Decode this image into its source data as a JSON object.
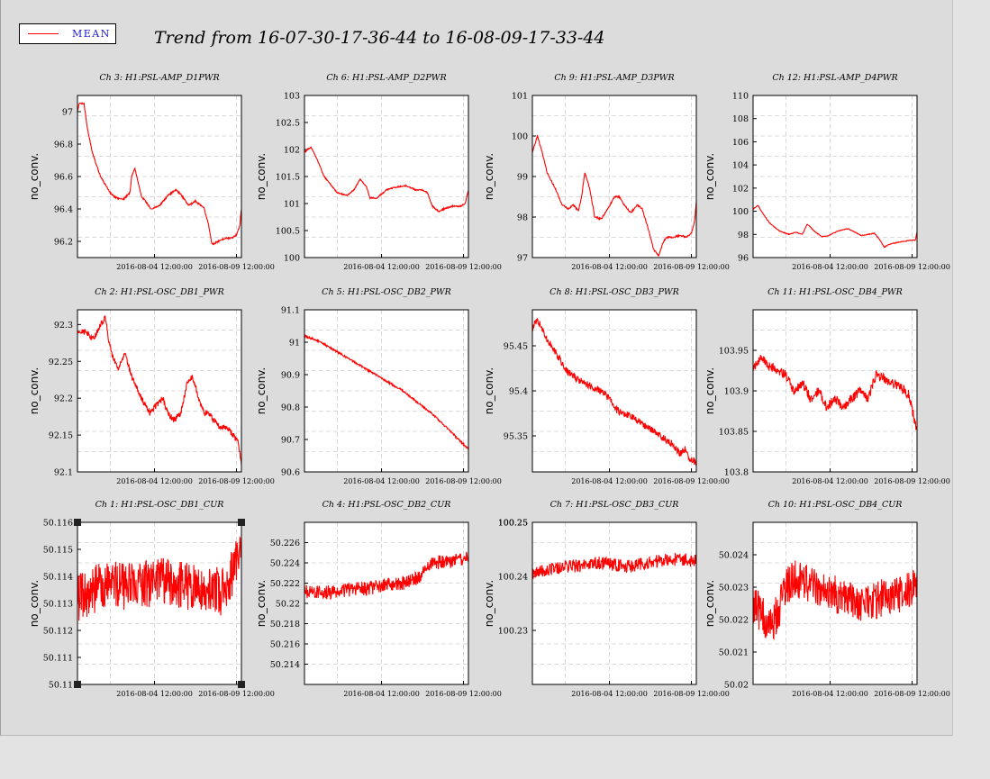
{
  "legend": {
    "label": "MEAN",
    "color": "#ff0000"
  },
  "title": "Trend from 16-07-30-17-36-44 to 16-08-09-17-33-44",
  "chart_data": [
    {
      "type": "line",
      "title": "Ch 3: H1:PSL-AMP_D1PWR",
      "ylabel": "no_conv.",
      "ylim": [
        96.1,
        97.1
      ],
      "yticks": [
        "96.2",
        "96.4",
        "96.6",
        "96.8",
        "97"
      ],
      "xticks": [
        "2016-08-04 12:00:00",
        "2016-08-09 12:00:00"
      ],
      "grid": true,
      "noise": 0.005,
      "series": [
        {
          "name": "MEAN",
          "x": [
            0,
            0.01,
            0.04,
            0.06,
            0.09,
            0.14,
            0.2,
            0.23,
            0.28,
            0.32,
            0.33,
            0.35,
            0.39,
            0.45,
            0.5,
            0.55,
            0.6,
            0.63,
            0.68,
            0.72,
            0.74,
            0.77,
            0.8,
            0.82,
            0.86,
            0.9,
            0.94,
            0.97,
            0.99,
            1
          ],
          "values": [
            97.0,
            97.05,
            97.05,
            96.9,
            96.75,
            96.6,
            96.5,
            96.47,
            96.46,
            96.5,
            96.6,
            96.65,
            96.48,
            96.4,
            96.42,
            96.48,
            96.52,
            96.49,
            96.42,
            96.45,
            96.43,
            96.41,
            96.3,
            96.18,
            96.2,
            96.22,
            96.22,
            96.24,
            96.3,
            96.4
          ]
        }
      ]
    },
    {
      "type": "line",
      "title": "Ch 6: H1:PSL-AMP_D2PWR",
      "ylabel": "no_conv.",
      "ylim": [
        100,
        103
      ],
      "yticks": [
        "100",
        "100.5",
        "101",
        "101.5",
        "102",
        "102.5",
        "103"
      ],
      "xticks": [
        "2016-08-04 12:00:00",
        "2016-08-09 12:00:00"
      ],
      "grid": true,
      "noise": 0.012,
      "series": [
        {
          "name": "MEAN",
          "x": [
            0,
            0.04,
            0.08,
            0.12,
            0.2,
            0.26,
            0.3,
            0.34,
            0.38,
            0.4,
            0.44,
            0.5,
            0.55,
            0.62,
            0.68,
            0.72,
            0.75,
            0.78,
            0.82,
            0.85,
            0.9,
            0.95,
            0.98,
            1
          ],
          "values": [
            101.95,
            102.05,
            101.8,
            101.5,
            101.2,
            101.15,
            101.25,
            101.45,
            101.3,
            101.1,
            101.1,
            101.25,
            101.3,
            101.33,
            101.25,
            101.25,
            101.2,
            100.95,
            100.85,
            100.9,
            100.95,
            100.95,
            101.0,
            101.25
          ]
        }
      ]
    },
    {
      "type": "line",
      "title": "Ch 9: H1:PSL-AMP_D3PWR",
      "ylabel": "no_conv.",
      "ylim": [
        97,
        101
      ],
      "yticks": [
        "97",
        "98",
        "99",
        "100",
        "101"
      ],
      "xticks": [
        "2016-08-04 12:00:00",
        "2016-08-09 12:00:00"
      ],
      "grid": true,
      "noise": 0.02,
      "series": [
        {
          "name": "MEAN",
          "x": [
            0,
            0.03,
            0.06,
            0.09,
            0.14,
            0.18,
            0.22,
            0.25,
            0.28,
            0.3,
            0.32,
            0.35,
            0.38,
            0.42,
            0.46,
            0.5,
            0.53,
            0.56,
            0.6,
            0.64,
            0.67,
            0.7,
            0.74,
            0.77,
            0.8,
            0.82,
            0.86,
            0.9,
            0.94,
            0.97,
            0.99,
            1
          ],
          "values": [
            99.6,
            100.0,
            99.6,
            99.1,
            98.7,
            98.3,
            98.2,
            98.3,
            98.15,
            98.5,
            99.1,
            98.7,
            98.0,
            97.95,
            98.2,
            98.5,
            98.5,
            98.3,
            98.1,
            98.3,
            98.2,
            97.8,
            97.2,
            97.05,
            97.4,
            97.5,
            97.5,
            97.55,
            97.5,
            97.6,
            97.9,
            98.4
          ]
        }
      ]
    },
    {
      "type": "line",
      "title": "Ch 12: H1:PSL-AMP_D4PWR",
      "ylabel": "no_conv.",
      "ylim": [
        96,
        110
      ],
      "yticks": [
        "96",
        "98",
        "100",
        "102",
        "104",
        "106",
        "108",
        "110"
      ],
      "xticks": [
        "2016-08-04 12:00:00",
        "2016-08-09 12:00:00"
      ],
      "grid": true,
      "noise": 0.03,
      "series": [
        {
          "name": "MEAN",
          "x": [
            0,
            0.03,
            0.06,
            0.1,
            0.16,
            0.22,
            0.26,
            0.3,
            0.33,
            0.38,
            0.42,
            0.46,
            0.52,
            0.58,
            0.62,
            0.66,
            0.7,
            0.74,
            0.77,
            0.8,
            0.84,
            0.88,
            0.92,
            0.96,
            0.99,
            1
          ],
          "values": [
            100.2,
            100.5,
            99.8,
            99.0,
            98.3,
            98.0,
            98.2,
            98.0,
            98.9,
            98.2,
            97.8,
            97.9,
            98.3,
            98.5,
            98.2,
            97.9,
            98.0,
            98.1,
            97.6,
            96.9,
            97.2,
            97.3,
            97.4,
            97.5,
            97.5,
            98.2
          ]
        }
      ]
    },
    {
      "type": "line",
      "title": "Ch 2: H1:PSL-OSC_DB1_PWR",
      "ylabel": "no_conv.",
      "ylim": [
        92.1,
        92.32
      ],
      "yticks": [
        "92.1",
        "92.15",
        "92.2",
        "92.25",
        "92.3"
      ],
      "xticks": [
        "2016-08-04 12:00:00",
        "2016-08-09 12:00:00"
      ],
      "grid": true,
      "noise": 0.004,
      "series": [
        {
          "name": "MEAN",
          "x": [
            0,
            0.05,
            0.1,
            0.14,
            0.17,
            0.19,
            0.21,
            0.25,
            0.29,
            0.33,
            0.35,
            0.39,
            0.44,
            0.48,
            0.52,
            0.55,
            0.59,
            0.63,
            0.67,
            0.7,
            0.74,
            0.77,
            0.8,
            0.83,
            0.87,
            0.91,
            0.95,
            0.98,
            1
          ],
          "values": [
            92.29,
            92.29,
            92.28,
            92.3,
            92.31,
            92.28,
            92.26,
            92.24,
            92.26,
            92.23,
            92.22,
            92.2,
            92.18,
            92.19,
            92.2,
            92.18,
            92.17,
            92.18,
            92.22,
            92.23,
            92.2,
            92.18,
            92.18,
            92.17,
            92.16,
            92.16,
            92.15,
            92.14,
            92.11
          ]
        }
      ]
    },
    {
      "type": "line",
      "title": "Ch 5: H1:PSL-OSC_DB2_PWR",
      "ylabel": "no_conv.",
      "ylim": [
        90.6,
        91.1
      ],
      "yticks": [
        "90.6",
        "90.7",
        "90.8",
        "90.9",
        "91",
        "91.1"
      ],
      "xticks": [
        "2016-08-04 12:00:00",
        "2016-08-09 12:00:00"
      ],
      "grid": true,
      "noise": 0.003,
      "series": [
        {
          "name": "MEAN",
          "x": [
            0,
            0.1,
            0.2,
            0.3,
            0.4,
            0.5,
            0.6,
            0.7,
            0.8,
            0.9,
            1
          ],
          "values": [
            91.02,
            91.0,
            90.97,
            90.94,
            90.91,
            90.88,
            90.85,
            90.81,
            90.77,
            90.72,
            90.67
          ]
        }
      ]
    },
    {
      "type": "line",
      "title": "Ch 8: H1:PSL-OSC_DB3_PWR",
      "ylabel": "no_conv.",
      "ylim": [
        95.31,
        95.49
      ],
      "yticks": [
        "95.35",
        "95.4",
        "95.45"
      ],
      "xticks": [
        "2016-08-04 12:00:00",
        "2016-08-09 12:00:00"
      ],
      "grid": true,
      "noise": 0.004,
      "series": [
        {
          "name": "MEAN",
          "x": [
            0,
            0.03,
            0.08,
            0.15,
            0.22,
            0.3,
            0.36,
            0.42,
            0.48,
            0.5,
            0.56,
            0.62,
            0.7,
            0.78,
            0.86,
            0.9,
            0.93,
            0.96,
            1
          ],
          "values": [
            95.47,
            95.48,
            95.46,
            95.44,
            95.42,
            95.41,
            95.405,
            95.4,
            95.39,
            95.38,
            95.375,
            95.37,
            95.36,
            95.35,
            95.34,
            95.33,
            95.335,
            95.325,
            95.32
          ]
        }
      ]
    },
    {
      "type": "line",
      "title": "Ch 11: H1:PSL-OSC_DB4_PWR",
      "ylabel": "no_conv.",
      "ylim": [
        103.8,
        104.0
      ],
      "yticks": [
        "103.8",
        "103.85",
        "103.9",
        "103.95"
      ],
      "xticks": [
        "2016-08-04 12:00:00",
        "2016-08-09 12:00:00"
      ],
      "grid": true,
      "noise": 0.006,
      "series": [
        {
          "name": "MEAN",
          "x": [
            0,
            0.05,
            0.1,
            0.2,
            0.25,
            0.3,
            0.35,
            0.4,
            0.45,
            0.5,
            0.55,
            0.6,
            0.65,
            0.7,
            0.75,
            0.8,
            0.85,
            0.9,
            0.95,
            1
          ],
          "values": [
            103.93,
            103.94,
            103.93,
            103.92,
            103.9,
            103.91,
            103.89,
            103.9,
            103.88,
            103.89,
            103.88,
            103.89,
            103.9,
            103.89,
            103.92,
            103.915,
            103.91,
            103.905,
            103.895,
            103.85
          ]
        }
      ]
    },
    {
      "type": "line",
      "title": "Ch 1: H1:PSL-OSC_DB1_CUR",
      "ylabel": "no_conv.",
      "ylim": [
        50.11,
        50.116
      ],
      "yticks": [
        "50.11",
        "50.111",
        "50.112",
        "50.113",
        "50.114",
        "50.115",
        "50.116"
      ],
      "xticks": [
        "2016-08-04 12:00:00",
        "2016-08-09 12:00:00"
      ],
      "grid": true,
      "noise": 0.0009,
      "series": [
        {
          "name": "MEAN",
          "x": [
            0,
            0.1,
            0.2,
            0.3,
            0.4,
            0.5,
            0.6,
            0.7,
            0.8,
            0.9,
            0.95,
            1
          ],
          "values": [
            50.1132,
            50.1135,
            50.1138,
            50.1136,
            50.1137,
            50.1138,
            50.1137,
            50.1136,
            50.1135,
            50.1134,
            50.1142,
            50.115
          ]
        }
      ]
    },
    {
      "type": "line",
      "title": "Ch 4: H1:PSL-OSC_DB2_CUR",
      "ylabel": "no_conv.",
      "ylim": [
        50.212,
        50.228
      ],
      "yticks": [
        "50.214",
        "50.216",
        "50.218",
        "50.22",
        "50.222",
        "50.224",
        "50.226"
      ],
      "xticks": [
        "2016-08-04 12:00:00",
        "2016-08-09 12:00:00"
      ],
      "grid": true,
      "noise": 0.0007,
      "series": [
        {
          "name": "MEAN",
          "x": [
            0,
            0.1,
            0.2,
            0.3,
            0.4,
            0.5,
            0.6,
            0.7,
            0.75,
            0.8,
            0.9,
            1
          ],
          "values": [
            50.2212,
            50.221,
            50.2212,
            50.2214,
            50.2215,
            50.2218,
            50.222,
            50.2225,
            50.2235,
            50.224,
            50.2242,
            50.2245
          ]
        }
      ]
    },
    {
      "type": "line",
      "title": "Ch 7: H1:PSL-OSC_DB3_CUR",
      "ylabel": "no_conv.",
      "ylim": [
        100.22,
        100.25
      ],
      "yticks": [
        "100.23",
        "100.24",
        "100.25",
        "100.25"
      ],
      "xticks": [
        "2016-08-04 12:00:00",
        "2016-08-09 12:00:00"
      ],
      "grid": true,
      "noise": 0.0012,
      "series": [
        {
          "name": "MEAN",
          "x": [
            0,
            0.1,
            0.2,
            0.3,
            0.4,
            0.5,
            0.6,
            0.7,
            0.8,
            0.9,
            1
          ],
          "values": [
            100.2405,
            100.2412,
            100.2418,
            100.242,
            100.2425,
            100.2422,
            100.2418,
            100.2425,
            100.243,
            100.2432,
            100.2428
          ]
        }
      ]
    },
    {
      "type": "line",
      "title": "Ch 10: H1:PSL-OSC_DB4_CUR",
      "ylabel": "no_conv.",
      "ylim": [
        50.02,
        50.025
      ],
      "yticks": [
        "50.02",
        "50.021",
        "50.022",
        "50.023",
        "50.024"
      ],
      "xticks": [
        "2016-08-04 12:00:00",
        "2016-08-09 12:00:00"
      ],
      "grid": true,
      "noise": 0.0006,
      "series": [
        {
          "name": "MEAN",
          "x": [
            0,
            0.05,
            0.1,
            0.15,
            0.2,
            0.25,
            0.3,
            0.4,
            0.5,
            0.6,
            0.7,
            0.8,
            0.9,
            1
          ],
          "values": [
            50.0225,
            50.0222,
            50.0218,
            50.0222,
            50.023,
            50.0233,
            50.0232,
            50.023,
            50.0228,
            50.0226,
            50.0225,
            50.0227,
            50.0228,
            50.023
          ]
        }
      ]
    }
  ]
}
